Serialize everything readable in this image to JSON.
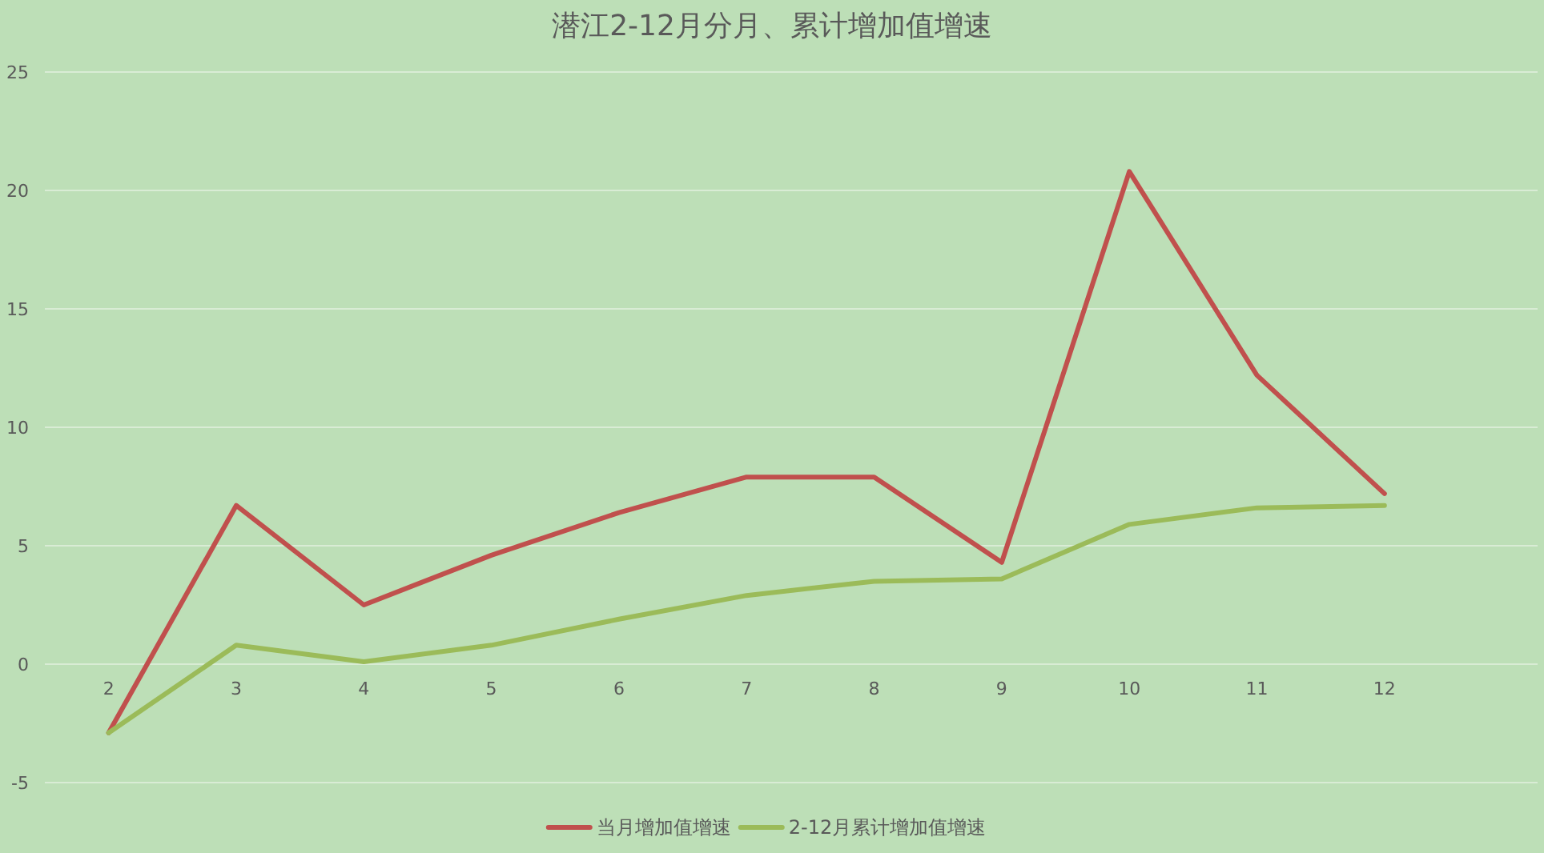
{
  "chart_data": {
    "type": "line",
    "title": "潜江2-12月分月、累计增加值增速",
    "categories": [
      "2",
      "3",
      "4",
      "5",
      "6",
      "7",
      "8",
      "9",
      "10",
      "11",
      "12"
    ],
    "series": [
      {
        "name": "当月增加值增速",
        "color": "#c0504d",
        "values": [
          -2.9,
          6.7,
          2.5,
          4.6,
          6.4,
          7.9,
          7.9,
          4.3,
          20.8,
          12.2,
          7.2
        ]
      },
      {
        "name": "2-12月累计增加值增速",
        "color": "#9bbb59",
        "values": [
          -2.9,
          0.8,
          0.1,
          0.8,
          1.9,
          2.9,
          3.5,
          3.6,
          5.9,
          6.6,
          6.7
        ]
      }
    ],
    "ylim": [
      -5,
      25
    ],
    "yticks": [
      -5,
      0,
      5,
      10,
      15,
      20,
      25
    ],
    "grid": "y",
    "legend": "bottom",
    "marker": "none",
    "line_style": "solid"
  }
}
